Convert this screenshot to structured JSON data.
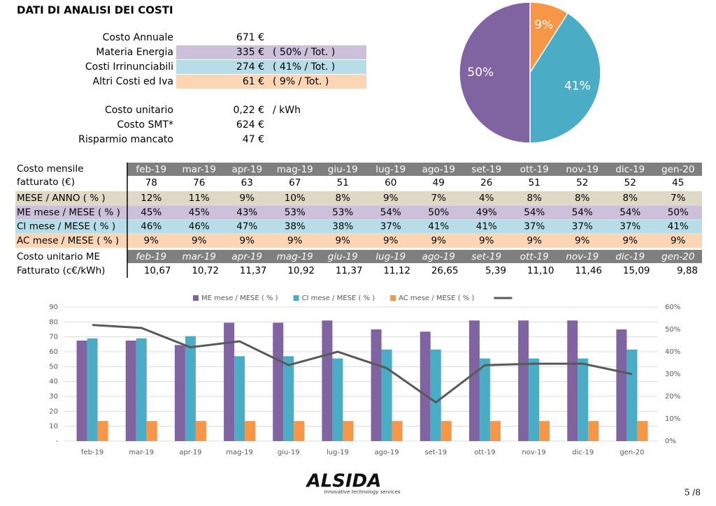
{
  "header": {
    "title": "DATI DI ANALISI DEI COSTI"
  },
  "summary": {
    "rows": [
      {
        "label": "Costo Annuale",
        "value": "671 €"
      },
      {
        "label": "Materia Energia",
        "value": "335 €",
        "note": "( 50% / Tot. )",
        "color": "#ccc0da"
      },
      {
        "label": "Costi Irrinunciabili",
        "value": "274 €",
        "note": "( 41% / Tot. )",
        "color": "#b7dee8"
      },
      {
        "label": "Altri Costi ed Iva",
        "value": "61 €",
        "note": "( 9% / Tot. )",
        "color": "#fcd5b4"
      },
      {
        "label": "Costo unitario",
        "value": "0,22 €",
        "note": "/ kWh"
      },
      {
        "label": "Costo SMT*",
        "value": "624 €"
      },
      {
        "label": "Risparmio mancato",
        "value": "47 €"
      }
    ]
  },
  "table": {
    "header_color": "#7f7f7f",
    "months": [
      "feb-19",
      "mar-19",
      "apr-19",
      "mag-19",
      "giu-19",
      "lug-19",
      "ago-19",
      "set-19",
      "ott-19",
      "nov-19",
      "dic-19",
      "gen-20"
    ],
    "monthly_cost": {
      "label": [
        "Costo mensile",
        "fatturato (€)"
      ],
      "values": [
        78,
        76,
        63,
        67,
        51,
        60,
        49,
        26,
        51,
        52,
        52,
        45
      ]
    },
    "rows": [
      {
        "label": "MESE / ANNO ( % )",
        "color": "#ddd9c4",
        "values": [
          "12%",
          "11%",
          "9%",
          "10%",
          "8%",
          "9%",
          "7%",
          "4%",
          "8%",
          "8%",
          "8%",
          "7%"
        ]
      },
      {
        "label": "ME mese / MESE ( % )",
        "color": "#ccc0da",
        "values": [
          "45%",
          "45%",
          "43%",
          "53%",
          "53%",
          "54%",
          "50%",
          "49%",
          "54%",
          "54%",
          "54%",
          "50%"
        ]
      },
      {
        "label": "CI mese / MESE ( % )",
        "color": "#b7dee8",
        "values": [
          "46%",
          "46%",
          "47%",
          "38%",
          "38%",
          "37%",
          "41%",
          "41%",
          "37%",
          "37%",
          "37%",
          "41%"
        ]
      },
      {
        "label": "AC mese / MESE ( % )",
        "color": "#fcd5b4",
        "values": [
          "9%",
          "9%",
          "9%",
          "9%",
          "9%",
          "9%",
          "9%",
          "9%",
          "9%",
          "9%",
          "9%",
          "9%"
        ]
      }
    ],
    "unit_cost": {
      "label": [
        "Costo unitario ME",
        "Fatturato (c€/kWh)"
      ],
      "values": [
        "10,67",
        "10,72",
        "11,37",
        "10,92",
        "11,37",
        "11,12",
        "26,65",
        "5,39",
        "11,10",
        "11,46",
        "15,09",
        "9,88"
      ]
    }
  },
  "chart_data": [
    {
      "type": "pie",
      "values": [
        9,
        41,
        50
      ],
      "value_labels": [
        "9%",
        "41%",
        "50%"
      ],
      "colors": [
        "#f79646",
        "#4bacc6",
        "#8064a2"
      ]
    },
    {
      "type": "bar",
      "categories": [
        "feb-19",
        "mar-19",
        "apr-19",
        "mag-19",
        "giu-19",
        "lug-19",
        "ago-19",
        "set-19",
        "ott-19",
        "nov-19",
        "dic-19",
        "gen-20"
      ],
      "series": [
        {
          "name": "ME mese / MESE ( % )",
          "color": "#8064a2",
          "axis": "y2",
          "values": [
            45,
            45,
            43,
            53,
            53,
            54,
            50,
            49,
            54,
            54,
            54,
            50
          ]
        },
        {
          "name": "CI mese / MESE ( % )",
          "color": "#4bacc6",
          "axis": "y2",
          "values": [
            46,
            46,
            47,
            38,
            38,
            37,
            41,
            41,
            37,
            37,
            37,
            41
          ]
        },
        {
          "name": "AC mese / MESE ( % )",
          "color": "#f79646",
          "axis": "y2",
          "values": [
            9,
            9,
            9,
            9,
            9,
            9,
            9,
            9,
            9,
            9,
            9,
            9
          ]
        },
        {
          "type": "line",
          "color": "#595959",
          "values": [
            78,
            76,
            63,
            67,
            51,
            60,
            49,
            26,
            51,
            52,
            52,
            45
          ]
        }
      ],
      "ylim": [
        0,
        90
      ],
      "yticks": [
        {
          "value": 0,
          "label": "-"
        },
        10,
        20,
        30,
        40,
        50,
        60,
        70,
        80,
        90
      ],
      "y2lim": [
        0,
        60
      ],
      "y2ticks": [
        {
          "value": 0,
          "label": "0%"
        },
        {
          "value": 10,
          "label": "10%"
        },
        {
          "value": 20,
          "label": "20%"
        },
        {
          "value": 30,
          "label": "30%"
        },
        {
          "value": 40,
          "label": "40%"
        },
        {
          "value": 50,
          "label": "50%"
        },
        {
          "value": 60,
          "label": "60%"
        }
      ],
      "grid": true,
      "legend": "top"
    }
  ],
  "footer": {
    "brand": "ALSIDA",
    "tagline": "Innovative technology services",
    "page": "5 /8"
  }
}
